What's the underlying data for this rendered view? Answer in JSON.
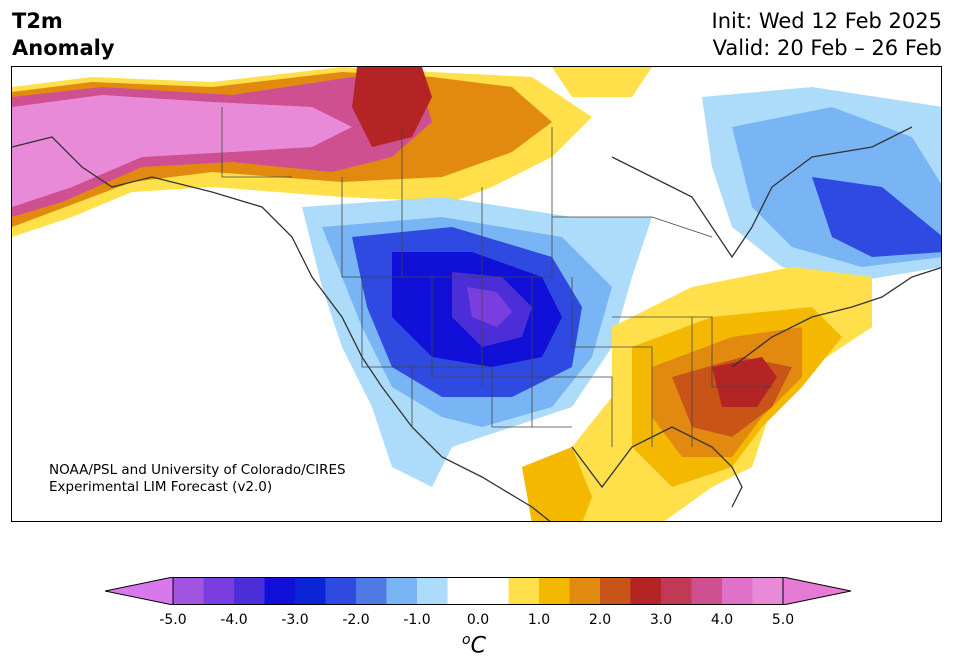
{
  "title": {
    "variable": "T2m",
    "quantity": "Anomaly",
    "init": "Init: Wed 12 Feb 2025",
    "valid": "Valid: 20 Feb – 26 Feb"
  },
  "credit": {
    "line1": "NOAA/PSL and University of Colorado/CIRES",
    "line2": "Experimental LIM Forecast (v2.0)"
  },
  "colorbar": {
    "units": "oC",
    "ticks": [
      "-5.0",
      "-4.0",
      "-3.0",
      "-2.0",
      "-1.0",
      "0.0",
      "1.0",
      "2.0",
      "3.0",
      "4.0",
      "5.0"
    ],
    "tick_values": [
      -5,
      -4,
      -3,
      -2,
      -1,
      0,
      1,
      2,
      3,
      4,
      5
    ],
    "bounds": [
      -5.0,
      -4.5,
      -4.0,
      -3.5,
      -3.0,
      -2.5,
      -2.0,
      -1.5,
      -1.0,
      -0.5,
      0.5,
      1.0,
      1.5,
      2.0,
      2.5,
      3.0,
      3.5,
      4.0,
      4.5,
      5.0
    ],
    "colors": [
      "#a154e0",
      "#7a3ee0",
      "#4b2ed8",
      "#1010d8",
      "#0a24d6",
      "#2e4ae0",
      "#4f7ae6",
      "#79b4f4",
      "#addcfa",
      "#ffffff",
      "#ffe04a",
      "#f5b800",
      "#e28a10",
      "#c85418",
      "#b42424",
      "#c03a56",
      "#cf5090",
      "#e070c8",
      "#e98ad8"
    ],
    "under_color": "#d878ec",
    "over_color": "#e67ad6"
  }
}
